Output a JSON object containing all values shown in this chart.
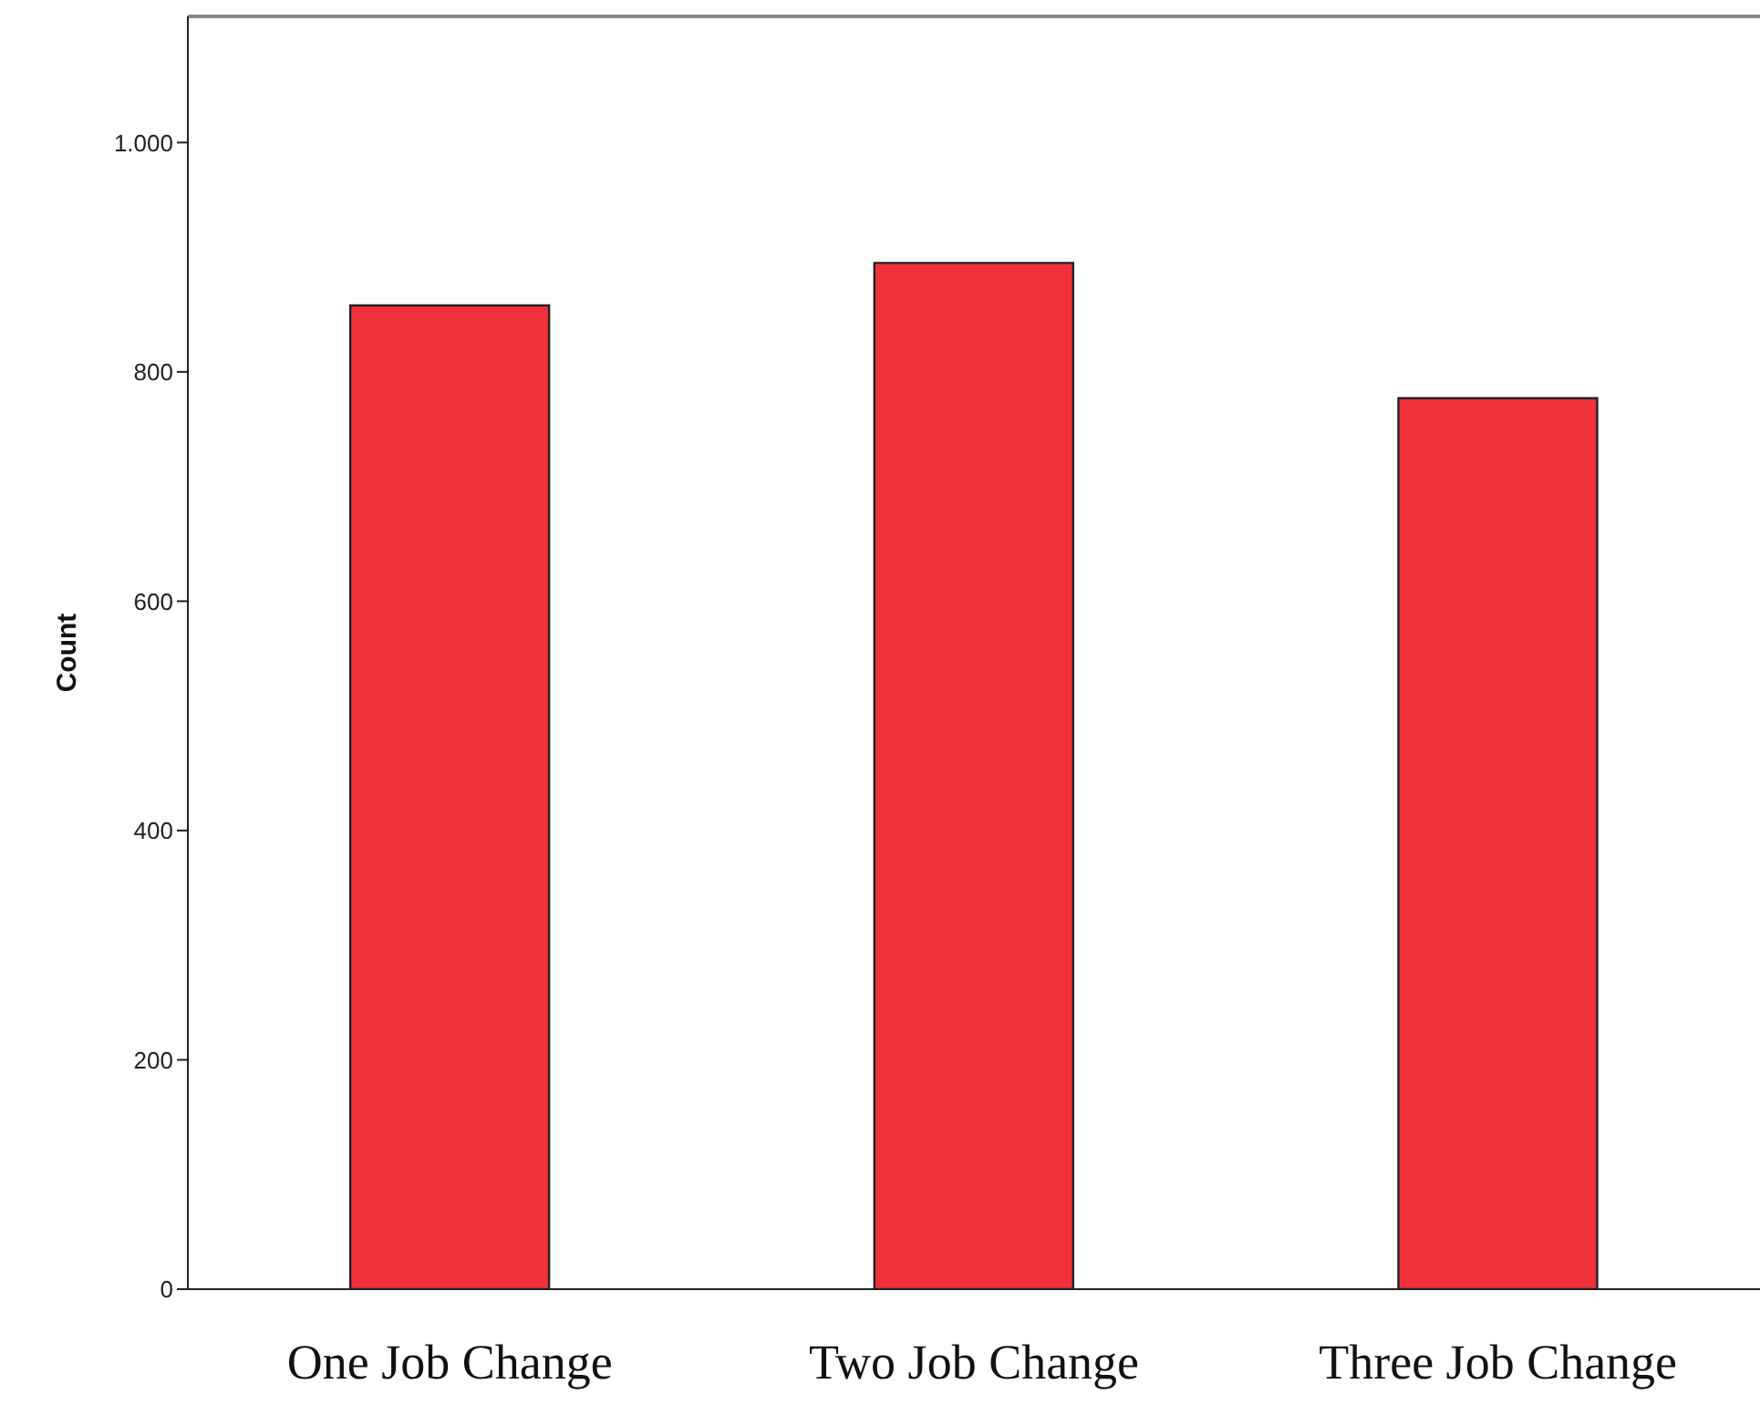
{
  "chart_data": {
    "type": "bar",
    "ylabel": "Count",
    "categories": [
      "One Job Change",
      "Two Job Change",
      "Three Job Change"
    ],
    "values": [
      858,
      895,
      777
    ],
    "color": "#ef323a",
    "ylim": [
      0,
      1110
    ],
    "yticks": [
      0,
      200,
      400,
      600,
      800,
      {
        "value": 1000,
        "label": "1.000"
      }
    ],
    "grid": false,
    "legend": false
  }
}
